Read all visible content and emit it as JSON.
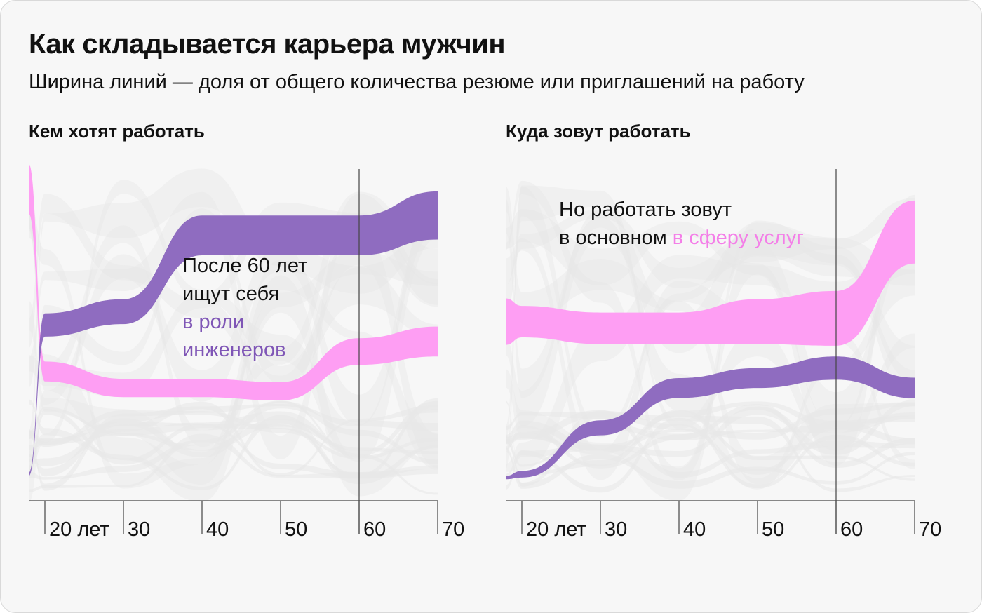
{
  "title": "Как складывается карьера мужчин",
  "subtitle": "Ширина линий — доля от общего количества резюме или приглашений на работу",
  "colors": {
    "background": "#f7f7f7",
    "highlight_pink": "#fe9af2",
    "highlight_pink_text": "#f47ee8",
    "highlight_purple": "#8a66bd",
    "highlight_purple_text": "#7f56b6",
    "background_flows": "#e7e7e7",
    "axis": "#444444"
  },
  "chart_data": [
    {
      "type": "area",
      "title": "Кем хотят работать",
      "x": [
        "16",
        "20",
        "30",
        "40",
        "50",
        "60",
        "70"
      ],
      "tick_labels": [
        "20 лет",
        "30",
        "40",
        "50",
        "60",
        "70"
      ],
      "marker_at": "60",
      "series": [
        {
          "color": "#fe9af2",
          "center": [
            0.94,
            0.39,
            0.34,
            0.34,
            0.33,
            0.45,
            0.48
          ],
          "width": [
            0.15,
            0.06,
            0.055,
            0.055,
            0.055,
            0.08,
            0.09
          ]
        },
        {
          "color": "#8a66bd",
          "center": [
            0.08,
            0.53,
            0.57,
            0.8,
            0.8,
            0.8,
            0.86
          ],
          "width": [
            0.01,
            0.07,
            0.075,
            0.12,
            0.12,
            0.12,
            0.145
          ]
        }
      ],
      "annotation": {
        "lines": [
          "После 60 лет",
          "ищут себя"
        ],
        "highlight_lines": [
          "в роли",
          "инженеров"
        ]
      }
    },
    {
      "type": "area",
      "title": "Куда зовут работать",
      "x": [
        "16",
        "20",
        "30",
        "40",
        "50",
        "60",
        "70"
      ],
      "tick_labels": [
        "20 лет",
        "30",
        "40",
        "50",
        "60",
        "70"
      ],
      "marker_at": "60",
      "series": [
        {
          "color": "#fe9af2",
          "center": [
            0.54,
            0.54,
            0.52,
            0.52,
            0.54,
            0.55,
            0.81
          ],
          "width": [
            0.14,
            0.095,
            0.095,
            0.095,
            0.135,
            0.165,
            0.19
          ]
        },
        {
          "color": "#8a66bd",
          "center": [
            0.07,
            0.08,
            0.22,
            0.34,
            0.37,
            0.4,
            0.34
          ],
          "width": [
            0.01,
            0.02,
            0.045,
            0.06,
            0.06,
            0.07,
            0.062
          ]
        }
      ],
      "annotation": {
        "lines": [
          "Но работать зовут",
          "в основном"
        ],
        "highlight_text": "в сферу услуг"
      }
    }
  ]
}
